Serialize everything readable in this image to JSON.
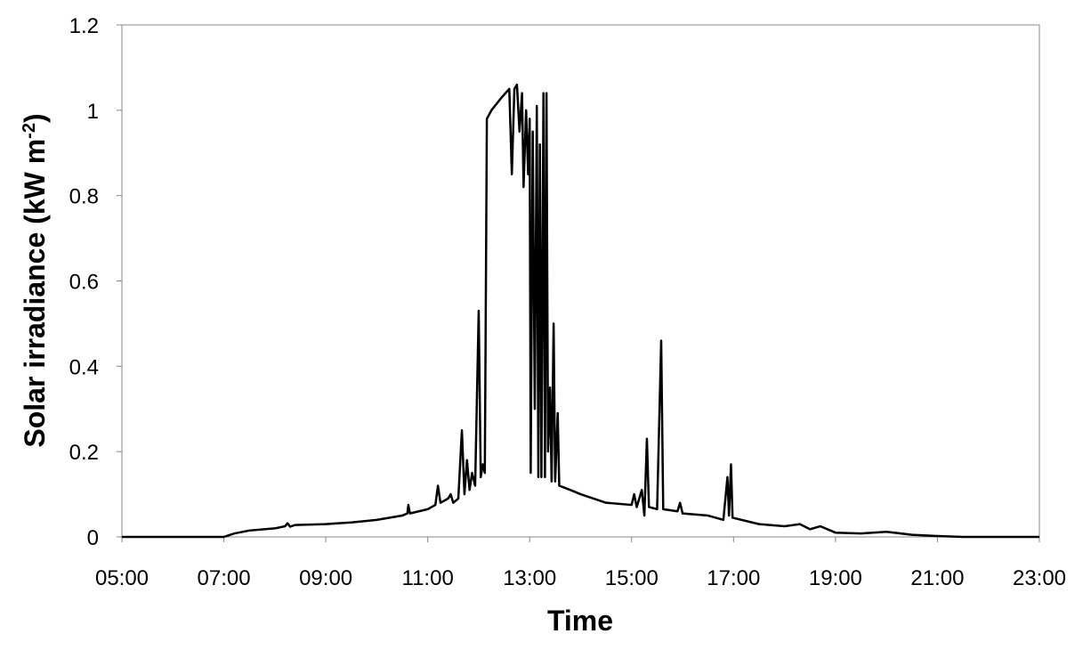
{
  "chart_data": {
    "type": "line",
    "x_label": "Time",
    "y_label": {
      "text": "Solar irradiance (kW  m",
      "superscript": "-2",
      "suffix": ")"
    },
    "xlim": [
      5,
      23
    ],
    "xticks": [
      {
        "value": 5,
        "label": "05:00"
      },
      {
        "value": 7,
        "label": "07:00"
      },
      {
        "value": 9,
        "label": "09:00"
      },
      {
        "value": 11,
        "label": "11:00"
      },
      {
        "value": 13,
        "label": "13:00"
      },
      {
        "value": 15,
        "label": "15:00"
      },
      {
        "value": 17,
        "label": "17:00"
      },
      {
        "value": 19,
        "label": "19:00"
      },
      {
        "value": 21,
        "label": "21:00"
      },
      {
        "value": 23,
        "label": "23:00"
      }
    ],
    "ylim": [
      0,
      1.2
    ],
    "yticks": [
      0,
      0.2,
      0.4,
      0.6,
      0.8,
      1,
      1.2
    ],
    "grid": false,
    "color": "#000000",
    "x": [
      5,
      7.0,
      7.2,
      7.5,
      8.0,
      8.2,
      8.25,
      8.3,
      8.4,
      9.0,
      9.5,
      10.0,
      10.5,
      10.6,
      10.62,
      10.65,
      11.0,
      11.15,
      11.2,
      11.25,
      11.4,
      11.45,
      11.5,
      11.6,
      11.67,
      11.72,
      11.77,
      11.82,
      11.87,
      11.93,
      12.0,
      12.04,
      12.08,
      12.12,
      12.16,
      12.25,
      12.45,
      12.6,
      12.65,
      12.7,
      12.75,
      12.8,
      12.85,
      12.88,
      12.93,
      12.97,
      13.0,
      13.02,
      13.06,
      13.1,
      13.14,
      13.17,
      13.2,
      13.23,
      13.27,
      13.3,
      13.33,
      13.36,
      13.4,
      13.43,
      13.47,
      13.5,
      13.55,
      13.58,
      13.8,
      14.0,
      14.5,
      15.0,
      15.05,
      15.1,
      15.2,
      15.25,
      15.3,
      15.34,
      15.5,
      15.58,
      15.62,
      15.9,
      15.95,
      16.0,
      16.5,
      16.8,
      16.88,
      16.91,
      16.95,
      16.98,
      17.5,
      18.0,
      18.3,
      18.5,
      18.7,
      19.0,
      19.5,
      20.0,
      20.5,
      21.0,
      21.5,
      23
    ],
    "values": [
      0,
      0,
      0.008,
      0.015,
      0.02,
      0.025,
      0.032,
      0.024,
      0.028,
      0.03,
      0.034,
      0.04,
      0.05,
      0.055,
      0.075,
      0.055,
      0.065,
      0.075,
      0.12,
      0.08,
      0.09,
      0.1,
      0.08,
      0.09,
      0.25,
      0.1,
      0.18,
      0.11,
      0.15,
      0.12,
      0.53,
      0.14,
      0.17,
      0.15,
      0.98,
      1.0,
      1.03,
      1.05,
      0.85,
      1.05,
      1.06,
      0.95,
      1.04,
      0.82,
      1.0,
      0.85,
      0.98,
      0.15,
      0.95,
      0.3,
      1.01,
      0.14,
      0.92,
      0.14,
      1.04,
      0.14,
      1.04,
      0.2,
      0.35,
      0.13,
      0.5,
      0.13,
      0.29,
      0.12,
      0.11,
      0.1,
      0.08,
      0.075,
      0.1,
      0.07,
      0.11,
      0.05,
      0.23,
      0.07,
      0.065,
      0.46,
      0.065,
      0.06,
      0.08,
      0.055,
      0.05,
      0.04,
      0.14,
      0.05,
      0.17,
      0.045,
      0.03,
      0.025,
      0.03,
      0.018,
      0.025,
      0.01,
      0.008,
      0.012,
      0.005,
      0.002,
      0,
      0
    ]
  }
}
